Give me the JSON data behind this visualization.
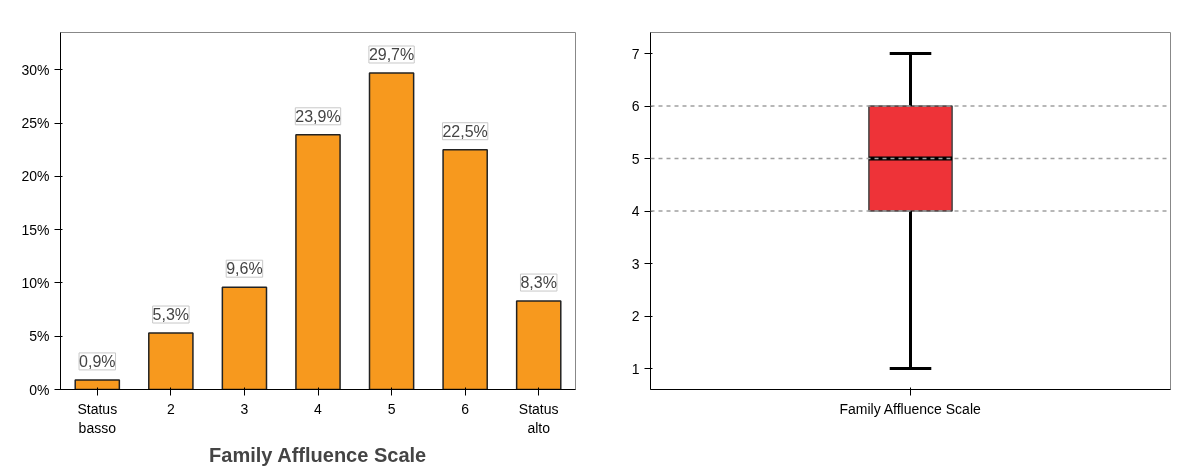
{
  "chart_data": [
    {
      "type": "bar",
      "xlabel": "Family Affluence Scale",
      "categories": [
        "Status basso",
        "2",
        "3",
        "4",
        "5",
        "6",
        "Status alto"
      ],
      "values": [
        0.9,
        5.3,
        9.6,
        23.9,
        29.7,
        22.5,
        8.3
      ],
      "value_labels": [
        "0,9%",
        "5,3%",
        "9,6%",
        "23,9%",
        "29,7%",
        "22,5%",
        "8,3%"
      ],
      "color": "#f7991e",
      "ylim": [
        0,
        33.5
      ],
      "yticks": [
        {
          "value": 0,
          "label": "0%"
        },
        {
          "value": 5,
          "label": "5%"
        },
        {
          "value": 10,
          "label": "10%"
        },
        {
          "value": 15,
          "label": "15%"
        },
        {
          "value": 20,
          "label": "20%"
        },
        {
          "value": 25,
          "label": "25%"
        },
        {
          "value": 30,
          "label": "30%"
        }
      ],
      "grid": false
    },
    {
      "type": "box",
      "categories": [
        "Family Affluence Scale"
      ],
      "color": "#ee3338",
      "boxes": [
        {
          "low": 1,
          "q1": 4,
          "median": 5,
          "q3": 6,
          "high": 7
        }
      ],
      "ylim": [
        0.6,
        7.4
      ],
      "yticks": [
        1,
        2,
        3,
        4,
        5,
        6,
        7
      ],
      "grid": false,
      "ref_lines": [
        {
          "axis": "y",
          "value": 4,
          "label": null,
          "color": "#a0a0a0",
          "line_style": "dashed"
        },
        {
          "axis": "y",
          "value": 5,
          "label": null,
          "color": "#a0a0a0",
          "line_style": "dashed"
        },
        {
          "axis": "y",
          "value": 6,
          "label": null,
          "color": "#a0a0a0",
          "line_style": "dashed"
        }
      ]
    }
  ]
}
